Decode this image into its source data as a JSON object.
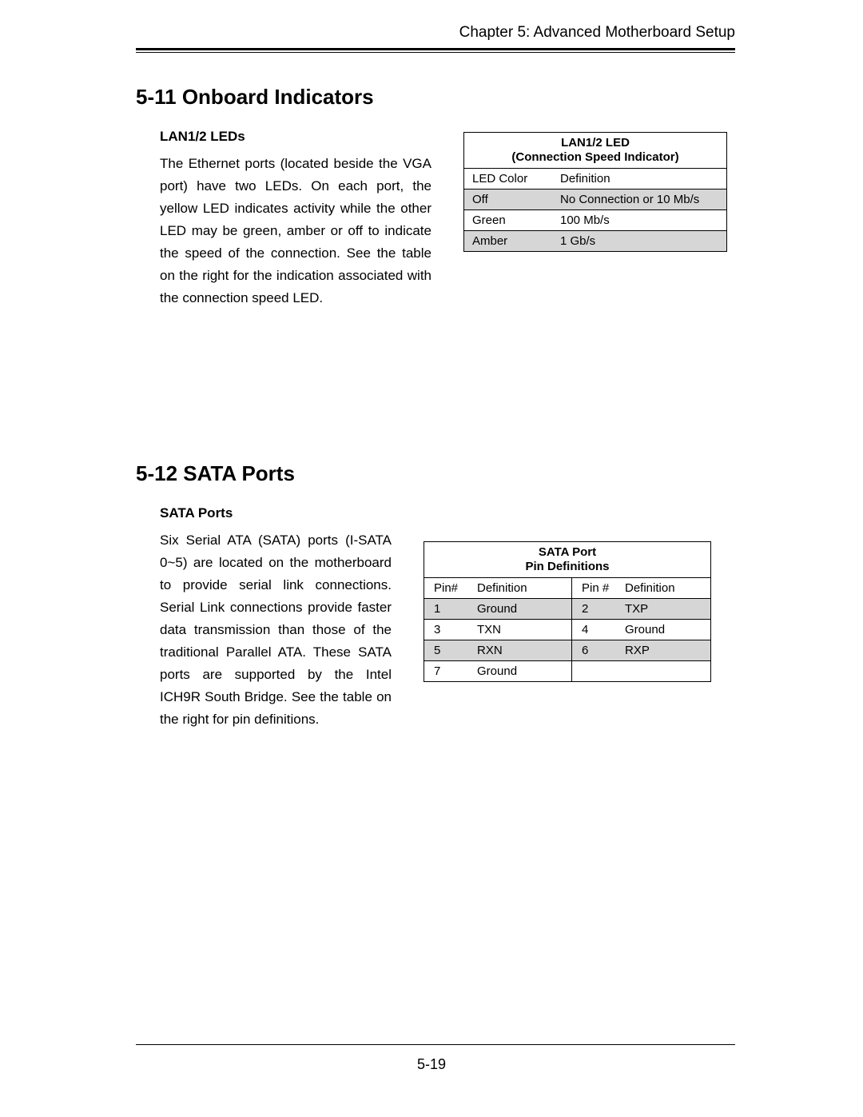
{
  "header": {
    "chapter": "Chapter 5: Advanced Motherboard Setup"
  },
  "section1": {
    "heading": "5-11  Onboard Indicators",
    "subheading": "LAN1/2 LEDs",
    "body": "The Ethernet ports (located beside the VGA port) have two LEDs. On each port, the yellow LED indicates activity while the other LED may be green, amber or off to indicate the speed of the connection. See the table on the right for the indication associated with the connection speed LED."
  },
  "led_table": {
    "title_line1": "LAN1/2 LED",
    "title_line2": "(Connection Speed Indicator)",
    "col1": "LED Color",
    "col2": "Definition",
    "rows": [
      {
        "c1": "Off",
        "c2": "No Connection or 10 Mb/s",
        "shaded": true
      },
      {
        "c1": "Green",
        "c2": "100 Mb/s",
        "shaded": false
      },
      {
        "c1": "Amber",
        "c2": "1 Gb/s",
        "shaded": true
      }
    ]
  },
  "section2": {
    "heading": "5-12  SATA Ports",
    "subheading": "SATA Ports",
    "body": "Six Serial ATA (SATA) ports (I-SATA 0~5) are located on the motherboard to provide serial link connections. Serial Link connections provide faster data transmission than those of the traditional Parallel ATA. These SATA ports are supported by the Intel ICH9R South Bridge. See the table on the right for pin definitions."
  },
  "sata_table": {
    "title_line1": "SATA Port",
    "title_line2": "Pin Definitions",
    "h1": "Pin#",
    "h2": "Definition",
    "h3": "Pin #",
    "h4": "Definition",
    "rows": [
      {
        "c1": "1",
        "c2": "Ground",
        "c3": "2",
        "c4": "TXP",
        "shaded": true
      },
      {
        "c1": "3",
        "c2": "TXN",
        "c3": "4",
        "c4": "Ground",
        "shaded": false
      },
      {
        "c1": "5",
        "c2": "RXN",
        "c3": "6",
        "c4": "RXP",
        "shaded": true
      },
      {
        "c1": "7",
        "c2": "Ground",
        "c3": "",
        "c4": "",
        "shaded": false
      }
    ]
  },
  "footer": {
    "page_number": "5-19"
  }
}
